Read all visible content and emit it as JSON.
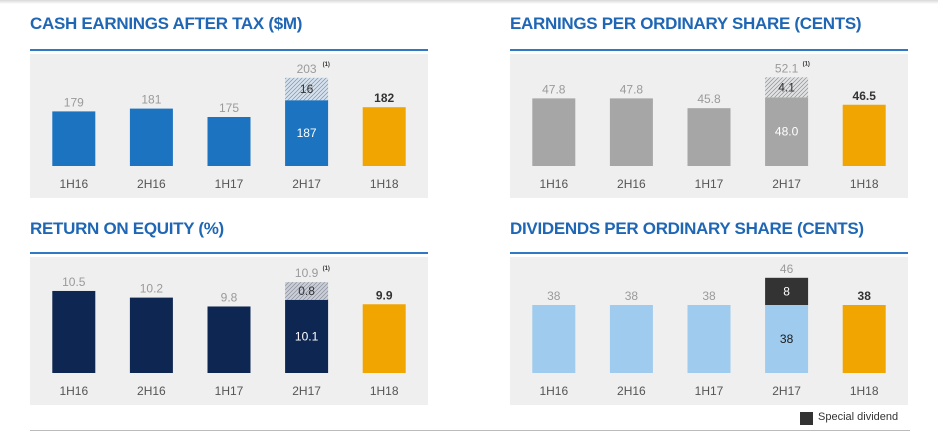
{
  "chart_data": [
    {
      "id": "cash",
      "type": "bar",
      "title": "CASH EARNINGS AFTER TAX ($M)",
      "categories": [
        "1H16",
        "2H16",
        "1H17",
        "2H17",
        "1H18"
      ],
      "values": [
        179,
        181,
        175,
        187,
        182
      ],
      "value_labels": [
        "179",
        "181",
        "175",
        "187",
        "182"
      ],
      "stack_on_2H17": {
        "value": 16,
        "label": "16",
        "style": "hatched"
      },
      "total_2H17": {
        "value": 203,
        "label": "203",
        "footnote": "(1)"
      },
      "colors": {
        "bar": "#1c73bf",
        "highlight": "#f0a500",
        "hatch": "#d5e2ef"
      },
      "ylim": [
        140,
        210
      ]
    },
    {
      "id": "eps",
      "type": "bar",
      "title": "EARNINGS PER ORDINARY SHARE (CENTS)",
      "categories": [
        "1H16",
        "2H16",
        "1H17",
        "2H17",
        "1H18"
      ],
      "values": [
        47.8,
        47.8,
        45.8,
        48.0,
        46.5
      ],
      "value_labels": [
        "47.8",
        "47.8",
        "45.8",
        "48.0",
        "46.5"
      ],
      "stack_on_2H17": {
        "value": 4.1,
        "label": "4.1",
        "style": "hatched"
      },
      "total_2H17": {
        "value": 52.1,
        "label": "52.1",
        "footnote": "(1)"
      },
      "colors": {
        "bar": "#a6a6a6",
        "highlight": "#f0a500",
        "hatch": "#e3e3e3"
      },
      "ylim": [
        34,
        54
      ]
    },
    {
      "id": "roe",
      "type": "bar",
      "title": "RETURN ON EQUITY (%)",
      "categories": [
        "1H16",
        "2H16",
        "1H17",
        "2H17",
        "1H18"
      ],
      "values": [
        10.5,
        10.2,
        9.8,
        10.1,
        9.9
      ],
      "value_labels": [
        "10.5",
        "10.2",
        "9.8",
        "10.1",
        "9.9"
      ],
      "stack_on_2H17": {
        "value": 0.8,
        "label": "0.8",
        "style": "hatched"
      },
      "total_2H17": {
        "value": 10.9,
        "label": "10.9",
        "footnote": "(1)"
      },
      "colors": {
        "bar": "#0e2752",
        "highlight": "#f0a500",
        "hatch": "#c9ced8"
      },
      "ylim": [
        6.8,
        11.4
      ]
    },
    {
      "id": "dps",
      "type": "bar",
      "title": "DIVIDENDS PER ORDINARY SHARE (CENTS)",
      "categories": [
        "1H16",
        "2H16",
        "1H17",
        "2H17",
        "1H18"
      ],
      "values": [
        38,
        38,
        38,
        38,
        38
      ],
      "value_labels": [
        "38",
        "38",
        "38",
        "38",
        "38"
      ],
      "stack_on_2H17": {
        "value": 8,
        "label": "8",
        "style": "solid-dark",
        "series": "Special dividend"
      },
      "total_2H17": {
        "value": 46,
        "label": "46",
        "footnote": ""
      },
      "colors": {
        "bar": "#9ecbee",
        "highlight": "#f0a500",
        "special": "#333333"
      },
      "ylim": [
        18,
        48
      ]
    }
  ],
  "legend": {
    "label": "Special dividend",
    "color": "#333333"
  },
  "colors": {
    "title": "#1f67b5",
    "rule": "#2f78c4",
    "panel_bg": "#efefef",
    "label_grey": "#9a9a9a",
    "axis_text": "#555555"
  }
}
